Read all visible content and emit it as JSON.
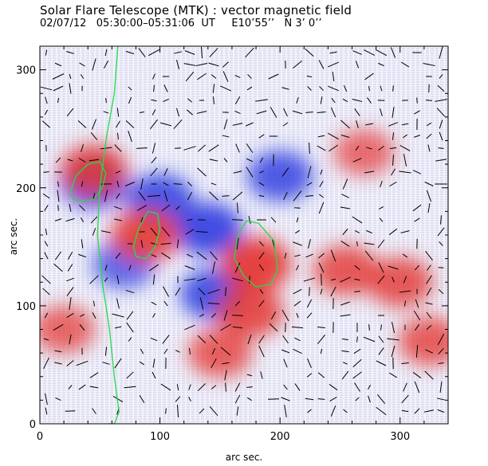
{
  "title": "Solar Flare Telescope (MTK) : vector magnetic field",
  "subtitle": "02/07/12   05:30:00–05:31:06  UT     E10’55’’   N 3’ 0’’",
  "chart_data": {
    "type": "heatmap",
    "title": "Solar Flare Telescope (MTK) : vector magnetic field",
    "xlabel": "arc sec.",
    "ylabel": "arc sec.",
    "xlim": [
      0,
      340
    ],
    "ylim": [
      0,
      320
    ],
    "x_ticks": [
      0,
      100,
      200,
      300
    ],
    "y_ticks": [
      0,
      100,
      200,
      300
    ],
    "colors": {
      "positive": "#e53935",
      "negative": "#2f3fe0",
      "contour": "#22dd44",
      "vectors": "#000000"
    },
    "regions": [
      {
        "polarity": "negative",
        "x": 45,
        "y": 205,
        "strength": 0.9
      },
      {
        "polarity": "negative",
        "x": 100,
        "y": 190,
        "strength": 0.8
      },
      {
        "polarity": "negative",
        "x": 140,
        "y": 165,
        "strength": 0.9
      },
      {
        "polarity": "negative",
        "x": 200,
        "y": 210,
        "strength": 0.7
      },
      {
        "polarity": "negative",
        "x": 145,
        "y": 110,
        "strength": 0.8
      },
      {
        "polarity": "negative",
        "x": 70,
        "y": 135,
        "strength": 0.5
      },
      {
        "polarity": "positive",
        "x": 45,
        "y": 215,
        "strength": 0.8
      },
      {
        "polarity": "positive",
        "x": 88,
        "y": 160,
        "strength": 0.9
      },
      {
        "polarity": "positive",
        "x": 180,
        "y": 135,
        "strength": 1.0
      },
      {
        "polarity": "positive",
        "x": 175,
        "y": 95,
        "strength": 0.8
      },
      {
        "polarity": "positive",
        "x": 150,
        "y": 60,
        "strength": 0.6
      },
      {
        "polarity": "positive",
        "x": 255,
        "y": 130,
        "strength": 0.7
      },
      {
        "polarity": "positive",
        "x": 300,
        "y": 120,
        "strength": 0.7
      },
      {
        "polarity": "positive",
        "x": 325,
        "y": 70,
        "strength": 0.6
      },
      {
        "polarity": "positive",
        "x": 270,
        "y": 230,
        "strength": 0.4
      },
      {
        "polarity": "positive",
        "x": 20,
        "y": 80,
        "strength": 0.5
      }
    ],
    "contours": [
      {
        "x": [
          25,
          30,
          40,
          50,
          55,
          52,
          45,
          35,
          28,
          25
        ],
        "y": [
          195,
          210,
          220,
          222,
          212,
          200,
          190,
          188,
          190,
          195
        ]
      },
      {
        "x": [
          78,
          82,
          90,
          98,
          100,
          96,
          88,
          80,
          78
        ],
        "y": [
          150,
          165,
          180,
          178,
          165,
          150,
          140,
          142,
          150
        ]
      },
      {
        "x": [
          162,
          165,
          172,
          182,
          195,
          198,
          192,
          180,
          170,
          162
        ],
        "y": [
          140,
          160,
          172,
          170,
          155,
          130,
          118,
          116,
          125,
          140
        ]
      },
      {
        "x": [
          65,
          62,
          55,
          50,
          48,
          52,
          58,
          62,
          66,
          62,
          56,
          58
        ],
        "y": [
          320,
          280,
          240,
          200,
          160,
          120,
          80,
          40,
          10,
          0,
          0,
          0
        ]
      }
    ]
  }
}
